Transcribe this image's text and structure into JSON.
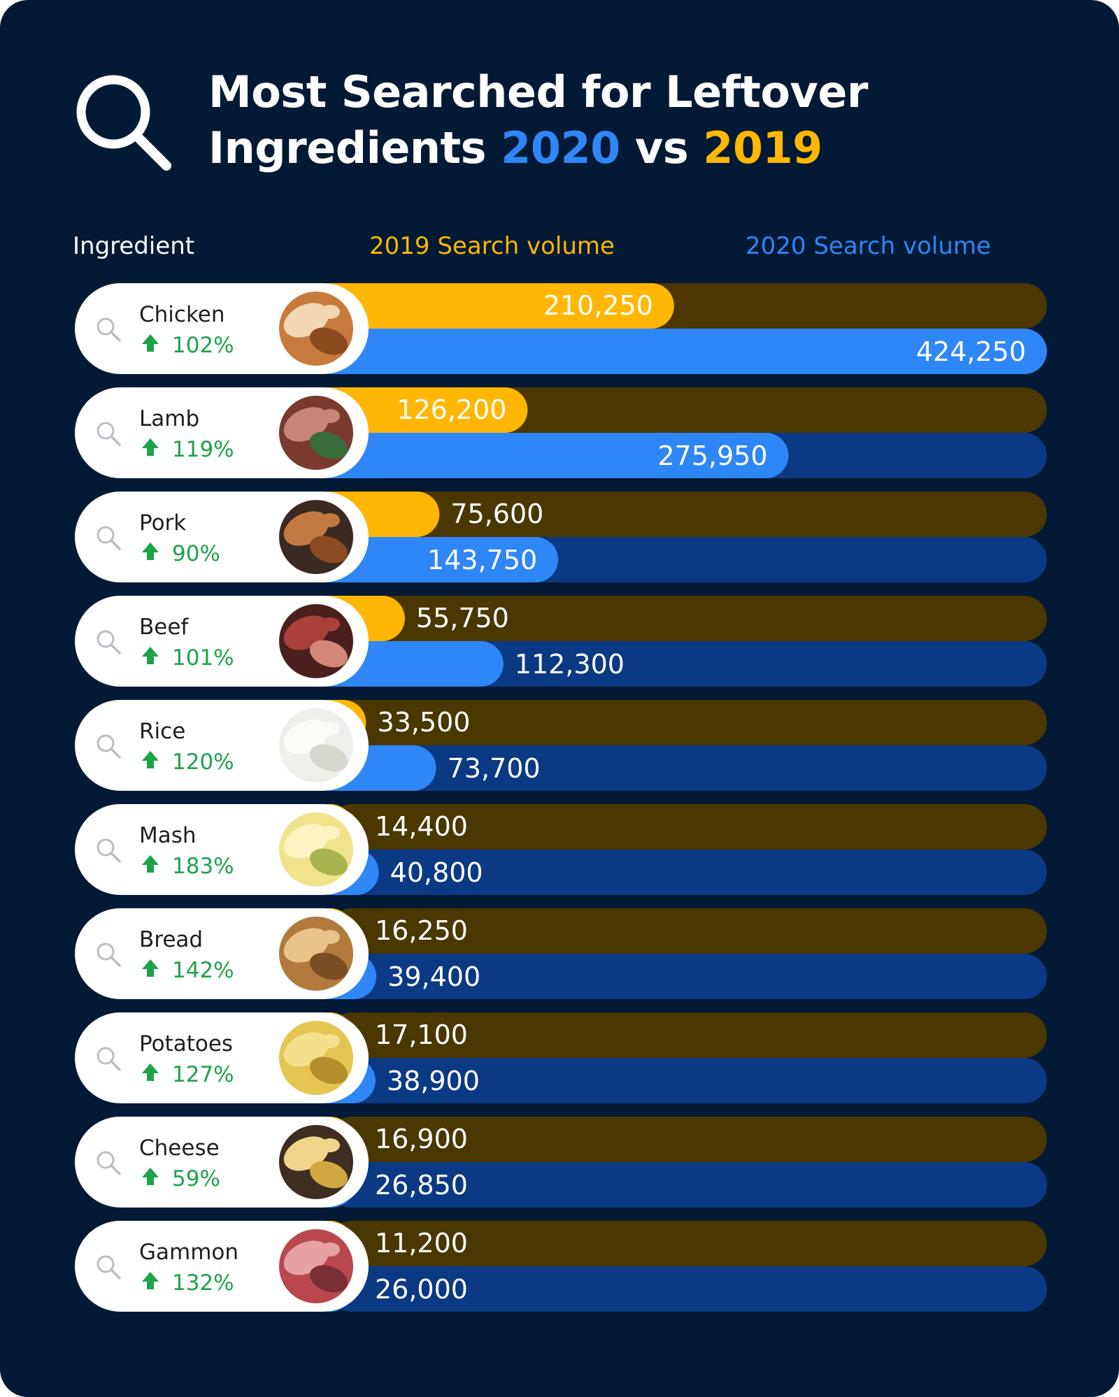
{
  "colors": {
    "background": "#021a35",
    "series_2019": "#ffb703",
    "series_2019_track": "#4a3702",
    "series_2020": "#2f86f6",
    "series_2020_track": "#0b3984",
    "increase": "#1fa348",
    "pill": "#ffffff"
  },
  "title": {
    "line1": "Most Searched for Leftover",
    "line2_start": "Ingredients ",
    "year_2020": "2020",
    "vs": " vs ",
    "year_2019": "2019",
    "icon": "search-icon"
  },
  "headers": {
    "ingredient": "Ingredient",
    "vol_2019": "2019 Search volume",
    "vol_2020": "2020 Search volume"
  },
  "chart_data": {
    "type": "bar",
    "title": "Most Searched for Leftover Ingredients 2020 vs 2019",
    "xmax": 424250,
    "categories": [
      "Chicken",
      "Lamb",
      "Pork",
      "Beef",
      "Rice",
      "Mash",
      "Bread",
      "Potatoes",
      "Cheese",
      "Gammon"
    ],
    "series": [
      {
        "name": "2019 Search volume",
        "values": [
          210250,
          126200,
          75600,
          55750,
          33500,
          14400,
          16250,
          17100,
          16900,
          11200
        ],
        "labels": [
          "210,250",
          "126,200",
          "75,600",
          "55,750",
          "33,500",
          "14,400",
          "16,250",
          "17,100",
          "16,900",
          "11,200"
        ]
      },
      {
        "name": "2020 Search volume",
        "values": [
          424250,
          275950,
          143750,
          112300,
          73700,
          40800,
          39400,
          38900,
          26850,
          26000
        ],
        "labels": [
          "424,250",
          "275,950",
          "143,750",
          "112,300",
          "73,700",
          "40,800",
          "39,400",
          "38,900",
          "26,850",
          "26,000"
        ]
      }
    ],
    "change": [
      "102%",
      "119%",
      "90%",
      "101%",
      "120%",
      "183%",
      "142%",
      "127%",
      "59%",
      "132%"
    ],
    "change_icon": "arrow-up-icon",
    "row_icon": "search-icon",
    "images": [
      "chicken",
      "lamb",
      "pork",
      "beef",
      "rice",
      "mash",
      "bread",
      "potatoes",
      "cheese",
      "gammon"
    ]
  }
}
